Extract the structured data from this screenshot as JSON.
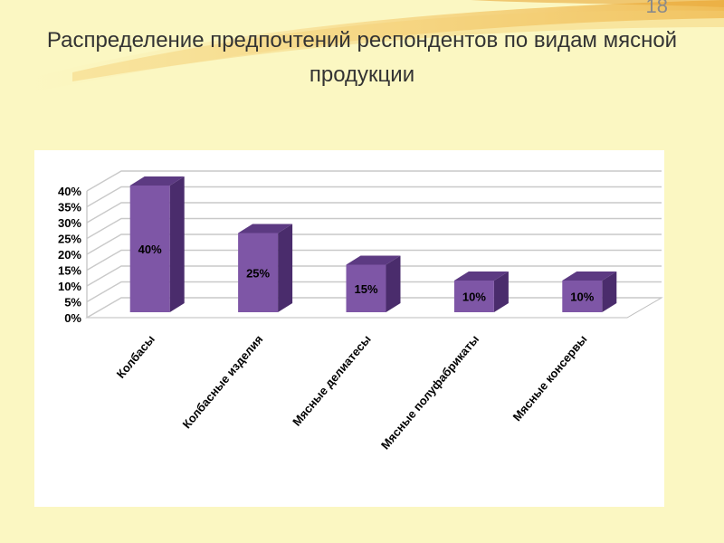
{
  "slide": {
    "number": "18"
  },
  "title": "Распределение предпочтений респондентов по видам мясной продукции",
  "colors": {
    "background": "#fbf7c2",
    "bar_front": "#7e56a6",
    "bar_top": "#5c3a82",
    "bar_side": "#4a2c6c",
    "grid": "#c9c9c9"
  },
  "chart_data": {
    "type": "bar",
    "title": "",
    "xlabel": "",
    "ylabel": "",
    "categories": [
      "Колбасы",
      "Колбасные изделия",
      "Мясные делиатесы",
      "Мясные полуфабрикаты",
      "Мясные консервы"
    ],
    "values": [
      40,
      25,
      15,
      10,
      10
    ],
    "data_labels": [
      "40%",
      "25%",
      "15%",
      "10%",
      "10%"
    ],
    "ylim": [
      0,
      40
    ],
    "yticks": [
      0,
      5,
      10,
      15,
      20,
      25,
      30,
      35,
      40
    ],
    "ytick_labels": [
      "0%",
      "5%",
      "10%",
      "15%",
      "20%",
      "25%",
      "30%",
      "35%",
      "40%"
    ],
    "grid": true,
    "legend": "none",
    "style": "3d"
  }
}
